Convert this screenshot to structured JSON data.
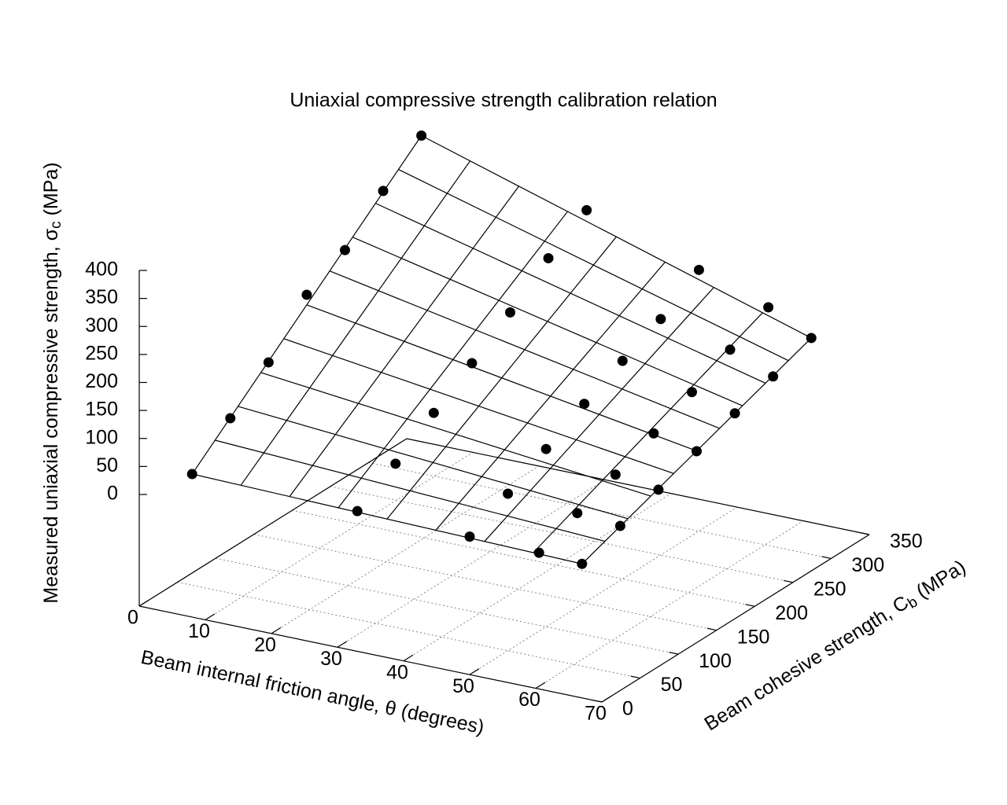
{
  "chart_data": {
    "type": "scatter3d",
    "title": "Uniaxial compressive strength calibration relation",
    "xlabel": "Beam internal friction angle, θ (degrees)",
    "ylabel": {
      "text": "Beam cohesive strength, C",
      "sub": "b",
      "tail": " (MPa)"
    },
    "zlabel": {
      "text": "Measured uniaxial compressive strength, σ",
      "sub": "c",
      "tail": " (MPa)"
    },
    "xlim": [
      0,
      70
    ],
    "xticks": [
      0,
      10,
      20,
      30,
      40,
      50,
      60,
      70
    ],
    "ylim": [
      0,
      350
    ],
    "yticks": [
      0,
      50,
      100,
      150,
      200,
      250,
      300,
      350
    ],
    "zlim": [
      0,
      400
    ],
    "zticks": [
      0,
      50,
      100,
      150,
      200,
      250,
      300,
      350,
      400
    ],
    "grid": true,
    "color": "#000000",
    "x": [
      8,
      8,
      8,
      8,
      8,
      8,
      8,
      33,
      33,
      33,
      33,
      33,
      33,
      33,
      50,
      50,
      50,
      50,
      50,
      50,
      50,
      60.5,
      60.5,
      60.5,
      60.5,
      60.5,
      60.5,
      60.5,
      67,
      67,
      67,
      67,
      67,
      67,
      67
    ],
    "y": [
      0,
      50,
      100,
      150,
      200,
      250,
      300,
      0,
      50,
      100,
      150,
      200,
      250,
      300,
      0,
      50,
      100,
      150,
      200,
      250,
      300,
      0,
      50,
      100,
      150,
      200,
      250,
      300,
      0,
      50,
      100,
      150,
      200,
      250,
      300
    ],
    "z": [
      56,
      113,
      170,
      248,
      285,
      348,
      404,
      51,
      93,
      141,
      187,
      235,
      289,
      332,
      47,
      81,
      118,
      156,
      190,
      222,
      267,
      44,
      72,
      98,
      129,
      160,
      193,
      226,
      40,
      65,
      87,
      113,
      138,
      161,
      187
    ]
  }
}
